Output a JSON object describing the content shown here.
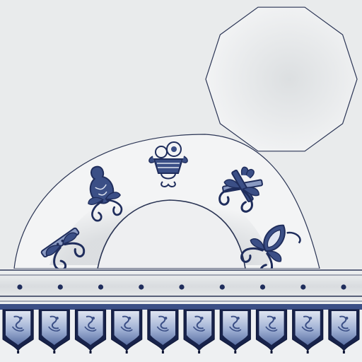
{
  "texture": {
    "colors": {
      "background": "#e9ebec",
      "porcelain": "#f3f4f5",
      "cobalt": "#1f2d5c",
      "cobalt_mid": "#3b4f86",
      "cobalt_light": "#8a9ac2",
      "outline": "#2a3454"
    },
    "arch_emblems": [
      {
        "name": "flute-with-ribbons",
        "icon": "flute-icon"
      },
      {
        "name": "gourd-with-ribbons",
        "icon": "gourd-icon"
      },
      {
        "name": "flower-basket",
        "icon": "flower-basket-icon"
      },
      {
        "name": "crossed-staves-with-ribbons",
        "icon": "staves-icon"
      },
      {
        "name": "lotus-bud-with-ribbons",
        "icon": "lotus-icon"
      }
    ],
    "rail_stud_count": 9,
    "tile_count": 10,
    "decagon_sides": 10
  }
}
